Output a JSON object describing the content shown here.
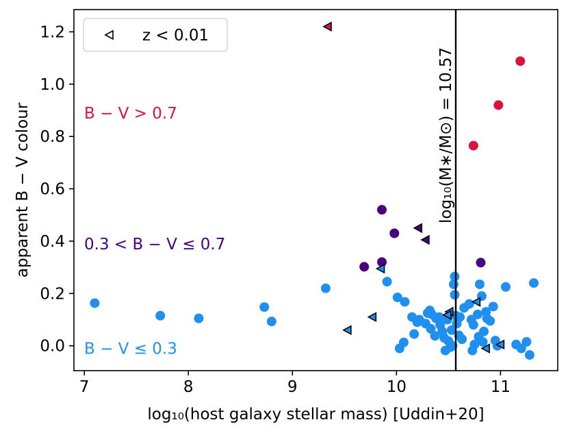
{
  "chart_data": {
    "type": "scatter",
    "xlabel": "log₁₀(host galaxy stellar mass) [Uddin+20]",
    "ylabel": "apparent B − V colour",
    "xlim": [
      6.9,
      11.55
    ],
    "ylim": [
      -0.095,
      1.285
    ],
    "xticks": [
      7,
      8,
      9,
      10,
      11
    ],
    "yticks": [
      0.0,
      0.2,
      0.4,
      0.6,
      0.8,
      1.0,
      1.2
    ],
    "xtick_labels": [
      "7",
      "8",
      "9",
      "10",
      "11"
    ],
    "ytick_labels": [
      "0.0",
      "0.2",
      "0.4",
      "0.6",
      "0.8",
      "1.0",
      "1.2"
    ],
    "grid": false,
    "colors": {
      "blue": "#1f8ff0",
      "purple": "#4b0082",
      "red": "#dc143c",
      "line": "#000000"
    },
    "vline": {
      "x": 10.57,
      "label": "log₁₀(M∗/M⊙) = 10.57"
    },
    "region_labels": [
      {
        "text": "B − V > 0.7",
        "color": "red",
        "y": 0.89
      },
      {
        "text": "0.3 < B − V ≤ 0.7",
        "color": "purple",
        "y": 0.39
      },
      {
        "text": "B − V ≤ 0.3",
        "color": "blue",
        "y": -0.01
      }
    ],
    "legend": {
      "position": "top-left",
      "entries": [
        {
          "marker": "triangle-left",
          "label": "z < 0.01"
        }
      ]
    },
    "series": [
      {
        "name": "B − V ≤ 0.3",
        "color": "blue",
        "marker": "circle",
        "points": [
          [
            7.1,
            0.163
          ],
          [
            7.73,
            0.115
          ],
          [
            8.1,
            0.105
          ],
          [
            8.73,
            0.148
          ],
          [
            8.8,
            0.093
          ],
          [
            9.32,
            0.22
          ],
          [
            9.91,
            0.245
          ],
          [
            10.01,
            0.185
          ],
          [
            10.08,
            0.168
          ],
          [
            10.03,
            -0.01
          ],
          [
            10.07,
            0.013
          ],
          [
            10.15,
            0.11
          ],
          [
            10.2,
            0.09
          ],
          [
            10.17,
            0.045
          ],
          [
            10.22,
            0.1
          ],
          [
            10.28,
            0.085
          ],
          [
            10.3,
            0.125
          ],
          [
            10.32,
            0.135
          ],
          [
            10.34,
            0.12
          ],
          [
            10.33,
            0.065
          ],
          [
            10.38,
            0.105
          ],
          [
            10.37,
            0.038
          ],
          [
            10.41,
            0.11
          ],
          [
            10.42,
            0.08
          ],
          [
            10.44,
            0.055
          ],
          [
            10.46,
            0.03
          ],
          [
            10.47,
            -0.018
          ],
          [
            10.49,
            0.1
          ],
          [
            10.5,
            0.018
          ],
          [
            10.52,
            -0.005
          ],
          [
            10.53,
            0.06
          ],
          [
            10.54,
            0.0
          ],
          [
            10.55,
            0.235
          ],
          [
            10.56,
            0.265
          ],
          [
            10.56,
            0.195
          ],
          [
            10.57,
            0.115
          ],
          [
            10.58,
            0.085
          ],
          [
            10.6,
            0.04
          ],
          [
            10.61,
            0.11
          ],
          [
            10.63,
            0.025
          ],
          [
            10.65,
            0.145
          ],
          [
            10.7,
            0.16
          ],
          [
            10.72,
            0.1
          ],
          [
            10.74,
            0.08
          ],
          [
            10.73,
            -0.018
          ],
          [
            10.75,
            0.005
          ],
          [
            10.78,
            0.12
          ],
          [
            10.79,
            0.035
          ],
          [
            10.8,
            0.235
          ],
          [
            10.82,
            0.19
          ],
          [
            10.83,
            0.015
          ],
          [
            10.84,
            0.055
          ],
          [
            10.86,
            0.13
          ],
          [
            10.87,
            0.105
          ],
          [
            10.9,
            0.095
          ],
          [
            10.93,
            0.15
          ],
          [
            10.95,
            0.02
          ],
          [
            10.97,
            0.0
          ],
          [
            11.05,
            0.225
          ],
          [
            11.15,
            0.005
          ],
          [
            11.2,
            -0.01
          ],
          [
            11.25,
            0.015
          ],
          [
            11.28,
            -0.035
          ],
          [
            11.32,
            0.24
          ]
        ]
      },
      {
        "name": "0.3 < B − V ≤ 0.7",
        "color": "purple",
        "marker": "circle",
        "points": [
          [
            9.69,
            0.302
          ],
          [
            9.86,
            0.52
          ],
          [
            9.86,
            0.32
          ],
          [
            9.98,
            0.43
          ],
          [
            10.81,
            0.318
          ]
        ]
      },
      {
        "name": "B − V > 0.7",
        "color": "red",
        "marker": "circle",
        "points": [
          [
            10.74,
            0.765
          ],
          [
            10.98,
            0.92
          ],
          [
            11.19,
            1.088
          ]
        ]
      },
      {
        "name": "z < 0.01 (B − V ≤ 0.3)",
        "color": "blue",
        "marker": "triangle-left",
        "points": [
          [
            9.53,
            0.06
          ],
          [
            9.77,
            0.11
          ],
          [
            9.85,
            0.295
          ],
          [
            10.51,
            0.13
          ],
          [
            10.49,
            0.118
          ],
          [
            10.77,
            0.168
          ],
          [
            10.86,
            -0.01
          ],
          [
            11.0,
            0.005
          ]
        ]
      },
      {
        "name": "z < 0.01 (0.3 < B − V ≤ 0.7)",
        "color": "purple",
        "marker": "triangle-left",
        "points": [
          [
            10.21,
            0.45
          ],
          [
            10.28,
            0.405
          ]
        ]
      },
      {
        "name": "z < 0.01 (B − V > 0.7)",
        "color": "red",
        "marker": "triangle-left",
        "points": [
          [
            9.34,
            1.22
          ]
        ]
      }
    ]
  }
}
